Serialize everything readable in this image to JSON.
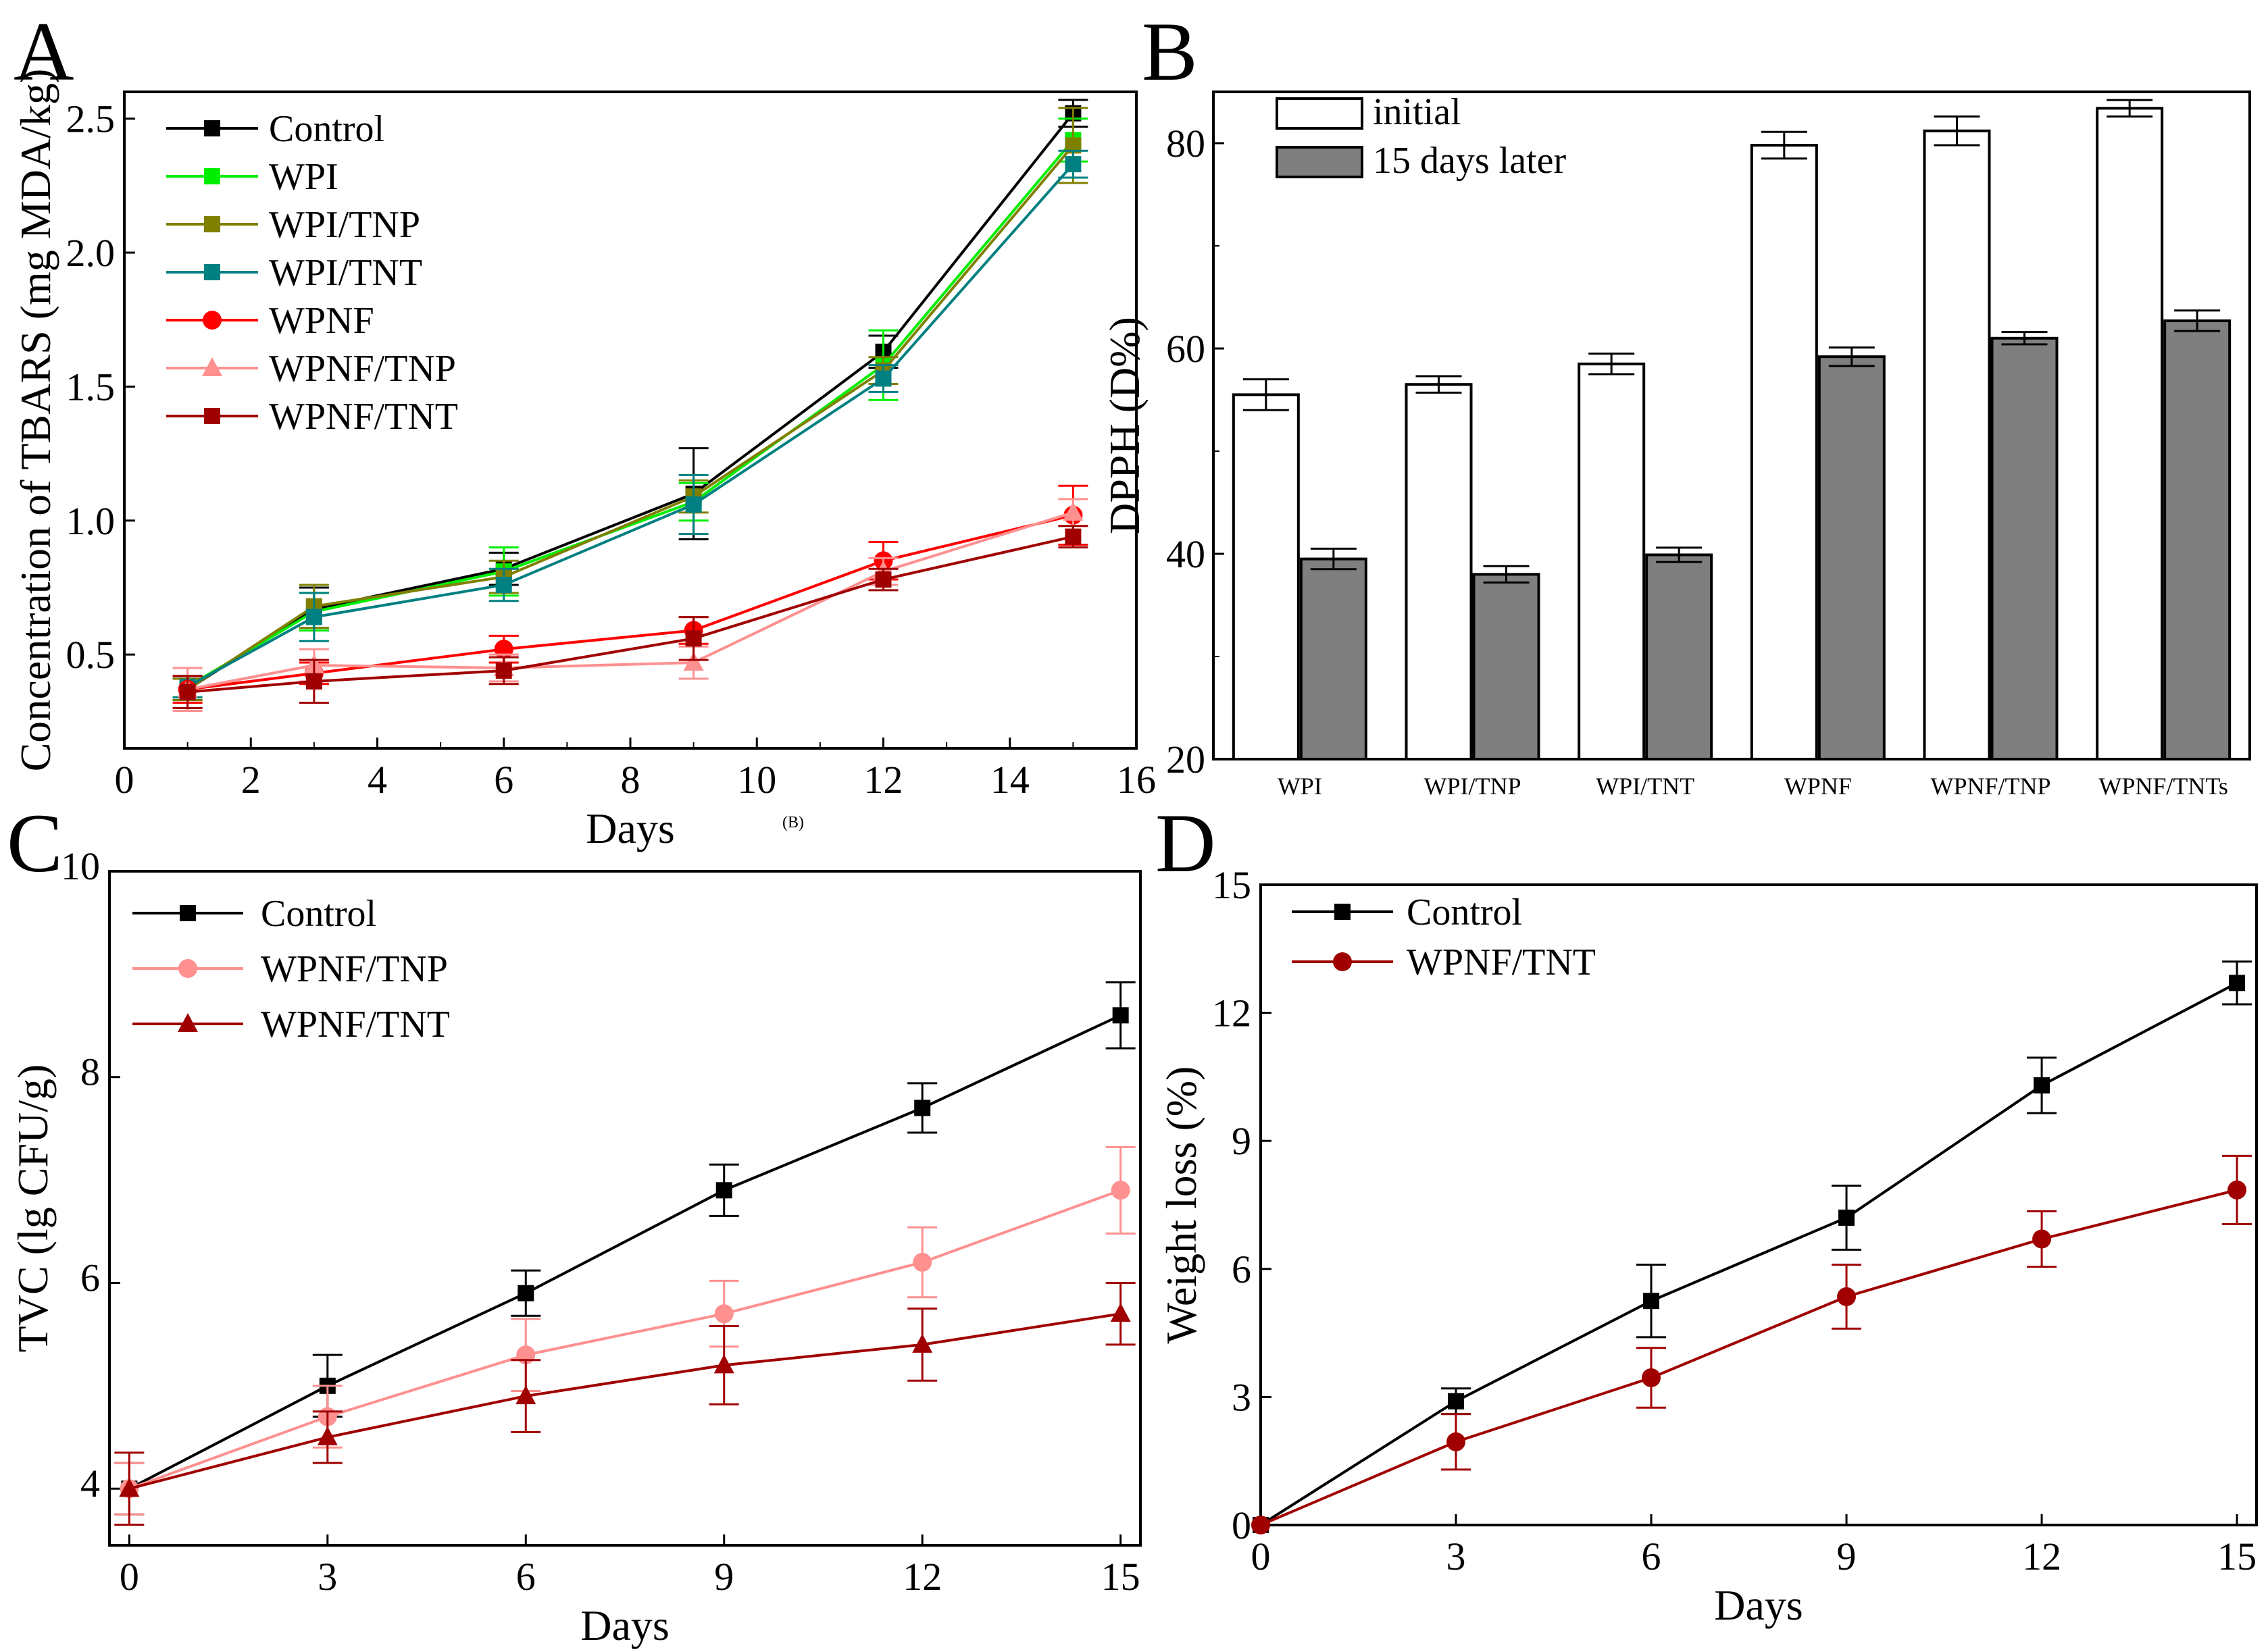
{
  "figure": {
    "note": "(B)"
  },
  "chart_data": [
    {
      "panel": "A",
      "type": "line",
      "xlabel": "Days",
      "ylabel": "Concentration of TBARS (mg MDA/kg)",
      "xlim": [
        0,
        16
      ],
      "ylim": [
        0.15,
        2.6
      ],
      "xticks": [
        0,
        2,
        4,
        6,
        8,
        10,
        12,
        14,
        16
      ],
      "yticks": [
        0.5,
        1.0,
        1.5,
        2.0,
        2.5
      ],
      "x": [
        1,
        3,
        6,
        9,
        12,
        15
      ],
      "series": [
        {
          "name": "Control",
          "color": "#000000",
          "marker": "square",
          "values": [
            0.37,
            0.67,
            0.82,
            1.1,
            1.63,
            2.52
          ],
          "errors": [
            0.04,
            0.08,
            0.06,
            0.17,
            0.06,
            0.05
          ]
        },
        {
          "name": "WPI",
          "color": "#00ee00",
          "marker": "square",
          "values": [
            0.38,
            0.66,
            0.81,
            1.07,
            1.58,
            2.42
          ],
          "errors": [
            0.04,
            0.07,
            0.09,
            0.07,
            0.13,
            0.08
          ]
        },
        {
          "name": "WPI/TNP",
          "color": "#808000",
          "marker": "square",
          "values": [
            0.37,
            0.68,
            0.79,
            1.09,
            1.56,
            2.4
          ],
          "errors": [
            0.04,
            0.08,
            0.06,
            0.06,
            0.05,
            0.14
          ]
        },
        {
          "name": "WPI/TNT",
          "color": "#008080",
          "marker": "square",
          "values": [
            0.38,
            0.64,
            0.76,
            1.06,
            1.53,
            2.33
          ],
          "errors": [
            0.04,
            0.09,
            0.06,
            0.11,
            0.05,
            0.05
          ]
        },
        {
          "name": "WPNF",
          "color": "#ff0000",
          "marker": "circle",
          "values": [
            0.37,
            0.43,
            0.52,
            0.59,
            0.85,
            1.02
          ],
          "errors": [
            0.05,
            0.04,
            0.05,
            0.05,
            0.07,
            0.11
          ]
        },
        {
          "name": "WPNF/TNP",
          "color": "#ff9090",
          "marker": "triangle",
          "values": [
            0.37,
            0.46,
            0.45,
            0.47,
            0.81,
            1.03
          ],
          "errors": [
            0.08,
            0.06,
            0.05,
            0.06,
            0.05,
            0.05
          ]
        },
        {
          "name": "WPNF/TNT",
          "color": "#a00000",
          "marker": "square",
          "values": [
            0.36,
            0.4,
            0.44,
            0.56,
            0.78,
            0.94
          ],
          "errors": [
            0.06,
            0.08,
            0.05,
            0.08,
            0.04,
            0.04
          ]
        }
      ]
    },
    {
      "panel": "B",
      "type": "bar",
      "ylabel": "DPPH (D%)",
      "ylim": [
        20,
        85
      ],
      "yticks": [
        20,
        40,
        60,
        80
      ],
      "categories": [
        "WPI",
        "WPI/TNP",
        "WPI/TNT",
        "WPNF",
        "WPNF/TNP",
        "WPNF/TNTs"
      ],
      "series": [
        {
          "name": "initial",
          "color": "#ffffff",
          "values": [
            55.5,
            56.5,
            58.5,
            79.8,
            81.2,
            83.4
          ],
          "errors": [
            1.5,
            0.8,
            1.0,
            1.3,
            1.4,
            0.8
          ]
        },
        {
          "name": "15 days later",
          "color": "#7f7f7f",
          "values": [
            39.5,
            38.0,
            39.9,
            59.2,
            61.0,
            62.7
          ],
          "errors": [
            1.0,
            0.8,
            0.7,
            0.9,
            0.6,
            1.0
          ]
        }
      ]
    },
    {
      "panel": "C",
      "type": "line",
      "xlabel": "Days",
      "ylabel": "TVC (lg CFU/g)",
      "xlim": [
        -0.3,
        15.3
      ],
      "ylim": [
        3.45,
        10
      ],
      "xticks": [
        0,
        3,
        6,
        9,
        12,
        15
      ],
      "yticks": [
        4,
        6,
        8,
        10
      ],
      "x": [
        0,
        3,
        6,
        9,
        12,
        15
      ],
      "series": [
        {
          "name": "Control",
          "color": "#000000",
          "marker": "square",
          "values": [
            4.0,
            5.0,
            5.9,
            6.9,
            7.7,
            8.6
          ],
          "errors": [
            0.25,
            0.3,
            0.22,
            0.25,
            0.24,
            0.32
          ]
        },
        {
          "name": "WPNF/TNP",
          "color": "#ff9090",
          "marker": "circle",
          "values": [
            4.0,
            4.7,
            5.3,
            5.7,
            6.2,
            6.9
          ],
          "errors": [
            0.25,
            0.3,
            0.35,
            0.32,
            0.34,
            0.42
          ]
        },
        {
          "name": "WPNF/TNT",
          "color": "#a00000",
          "marker": "triangle",
          "values": [
            4.0,
            4.5,
            4.9,
            5.2,
            5.4,
            5.7
          ],
          "errors": [
            0.35,
            0.25,
            0.35,
            0.38,
            0.35,
            0.3
          ]
        }
      ]
    },
    {
      "panel": "D",
      "type": "line",
      "xlabel": "Days",
      "ylabel": "Weight loss (%)",
      "xlim": [
        0,
        15.3
      ],
      "ylim": [
        0,
        15
      ],
      "xticks": [
        0,
        3,
        6,
        9,
        12,
        15
      ],
      "yticks": [
        0,
        3,
        6,
        9,
        12,
        15
      ],
      "x": [
        0,
        3,
        6,
        9,
        12,
        15
      ],
      "series": [
        {
          "name": "Control",
          "color": "#000000",
          "marker": "square",
          "values": [
            0,
            2.9,
            5.25,
            7.2,
            10.3,
            12.7
          ],
          "errors": [
            0,
            0.3,
            0.85,
            0.75,
            0.65,
            0.5
          ]
        },
        {
          "name": "WPNF/TNT",
          "color": "#a00000",
          "marker": "circle",
          "values": [
            0,
            1.95,
            3.45,
            5.35,
            6.7,
            7.85
          ],
          "errors": [
            0,
            0.65,
            0.7,
            0.75,
            0.65,
            0.8
          ]
        }
      ]
    }
  ]
}
